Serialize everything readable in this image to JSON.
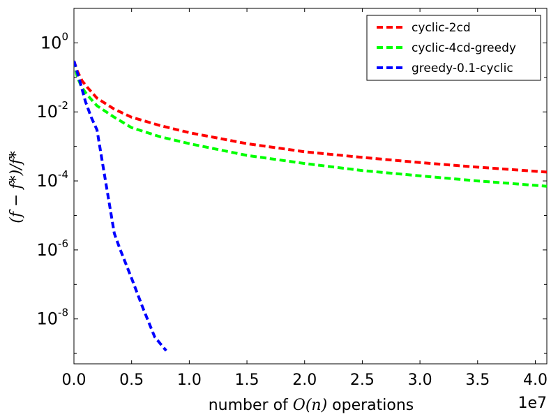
{
  "chart_data": {
    "type": "line",
    "title": "",
    "xlabel": {
      "prefix": "number of ",
      "math": "O(n)",
      "suffix": " operations"
    },
    "ylabel": "(f − f*)/f*",
    "x_offset_label": "1e7",
    "xlim": [
      0,
      41000000
    ],
    "ylim": [
      5e-10,
      10
    ],
    "yscale": "log",
    "x_tick_labels": [
      "0.0",
      "0.5",
      "1.0",
      "1.5",
      "2.0",
      "2.5",
      "3.0",
      "3.5",
      "4.0"
    ],
    "x_ticks": [
      0,
      5000000,
      10000000,
      15000000,
      20000000,
      25000000,
      30000000,
      35000000,
      40000000
    ],
    "y_ticks": [
      {
        "value": 1,
        "base": "10",
        "exp": "0"
      },
      {
        "value": 0.01,
        "base": "10",
        "exp": "-2"
      },
      {
        "value": 0.0001,
        "base": "10",
        "exp": "-4"
      },
      {
        "value": 1e-06,
        "base": "10",
        "exp": "-6"
      },
      {
        "value": 1e-08,
        "base": "10",
        "exp": "-8"
      }
    ],
    "grid": false,
    "legend_position": "top-right",
    "series": [
      {
        "name": "cyclic-2cd",
        "color": "#ff0000",
        "x": [
          0,
          300000,
          700000,
          1200000,
          2000000,
          3500000,
          5000000,
          7500000,
          10000000,
          15000000,
          20000000,
          25000000,
          30000000,
          35000000,
          41000000
        ],
        "y": [
          0.3,
          0.15,
          0.08,
          0.05,
          0.025,
          0.012,
          0.007,
          0.004,
          0.0025,
          0.0012,
          0.0007,
          0.00048,
          0.00034,
          0.00025,
          0.00018
        ]
      },
      {
        "name": "cyclic-4cd-greedy",
        "color": "#00ff00",
        "x": [
          0,
          300000,
          700000,
          1200000,
          2000000,
          3500000,
          5000000,
          7500000,
          10000000,
          15000000,
          20000000,
          25000000,
          30000000,
          35000000,
          41000000
        ],
        "y": [
          0.3,
          0.1,
          0.05,
          0.03,
          0.015,
          0.007,
          0.0035,
          0.0019,
          0.0012,
          0.00055,
          0.00032,
          0.0002,
          0.00014,
          0.0001,
          7e-05
        ]
      },
      {
        "name": "greedy-0.1-cyclic",
        "color": "#0000ff",
        "x": [
          0,
          500000,
          1000000,
          1500000,
          2000000,
          2500000,
          3000000,
          3500000,
          4000000,
          5000000,
          6000000,
          7000000,
          8000000
        ],
        "y": [
          0.3,
          0.08,
          0.02,
          0.007,
          0.003,
          0.0003,
          3e-05,
          3e-06,
          1.05e-06,
          1.5e-07,
          2e-08,
          3e-09,
          1.2e-09
        ]
      }
    ]
  }
}
